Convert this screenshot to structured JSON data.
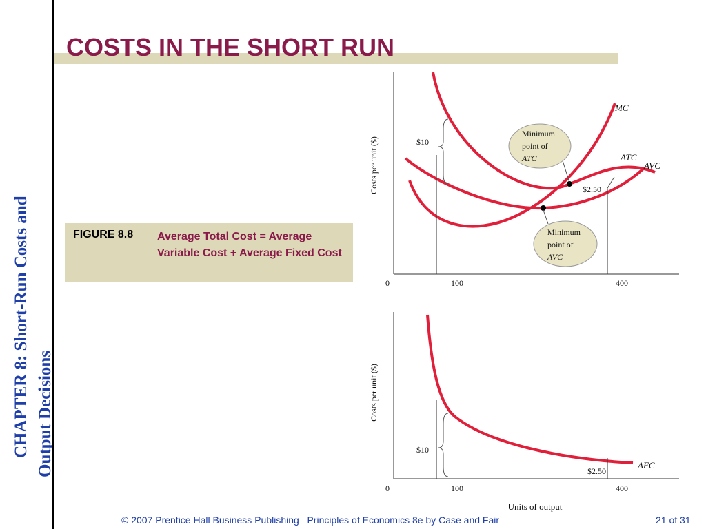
{
  "sidebar": {
    "chapter_label": "CHAPTER 8:",
    "chapter_title_line1": "Short-Run Costs and",
    "chapter_title_line2": "Output Decisions"
  },
  "slide": {
    "title": "COSTS IN THE SHORT RUN"
  },
  "figure": {
    "number": "FIGURE 8.8",
    "caption": "Average Total Cost = Average Variable Cost + Average Fixed Cost"
  },
  "footer": {
    "copyright": "© 2007 Prentice Hall Business Publishing   Principles of Economics 8e by Case and Fair",
    "page_current": "21",
    "page_sep": "of",
    "page_total": "31"
  },
  "colors": {
    "accent": "#8a1a4a",
    "sidebar_text": "#1f3fa8",
    "band": "#ddd8b8",
    "curve": "#e0203a",
    "callout_fill": "#e8e4c4"
  },
  "chart_data": [
    {
      "type": "line",
      "ylabel": "Costs per unit ($)",
      "x_ticks": [
        "0",
        "100",
        "400"
      ],
      "series": [
        {
          "name": "MC",
          "x": [
            50,
            100,
            150,
            200,
            250,
            300,
            350,
            400,
            430
          ],
          "y": [
            13,
            9.5,
            6.0,
            3.5,
            2.3,
            2.4,
            4.5,
            9.0,
            13.5
          ]
        },
        {
          "name": "ATC",
          "x": [
            30,
            100,
            200,
            300,
            400,
            450
          ],
          "y": [
            14,
            10,
            5.5,
            3.0,
            2.7,
            4.0
          ]
        },
        {
          "name": "AVC",
          "x": [
            30,
            100,
            200,
            300,
            400,
            450
          ],
          "y": [
            9.5,
            5.0,
            2.4,
            3.0,
            5.5,
            7.0
          ]
        }
      ],
      "annotations": [
        {
          "text": "$10"
        },
        {
          "text": "$2.50"
        },
        {
          "text_lines": [
            "Minimum",
            "point of",
            "ATC"
          ]
        },
        {
          "text_lines": [
            "Minimum",
            "point of",
            "AVC"
          ]
        }
      ]
    },
    {
      "type": "line",
      "xlabel": "Units of output",
      "ylabel": "Costs per unit ($)",
      "x_ticks": [
        "0",
        "100",
        "400"
      ],
      "series": [
        {
          "name": "AFC",
          "x": [
            45,
            60,
            100,
            150,
            200,
            300,
            400,
            450
          ],
          "y": [
            22,
            16,
            10,
            7,
            5.5,
            3.8,
            2.5,
            2.25
          ]
        }
      ],
      "annotations": [
        {
          "text": "$10"
        },
        {
          "text": "$2.50"
        }
      ]
    }
  ]
}
